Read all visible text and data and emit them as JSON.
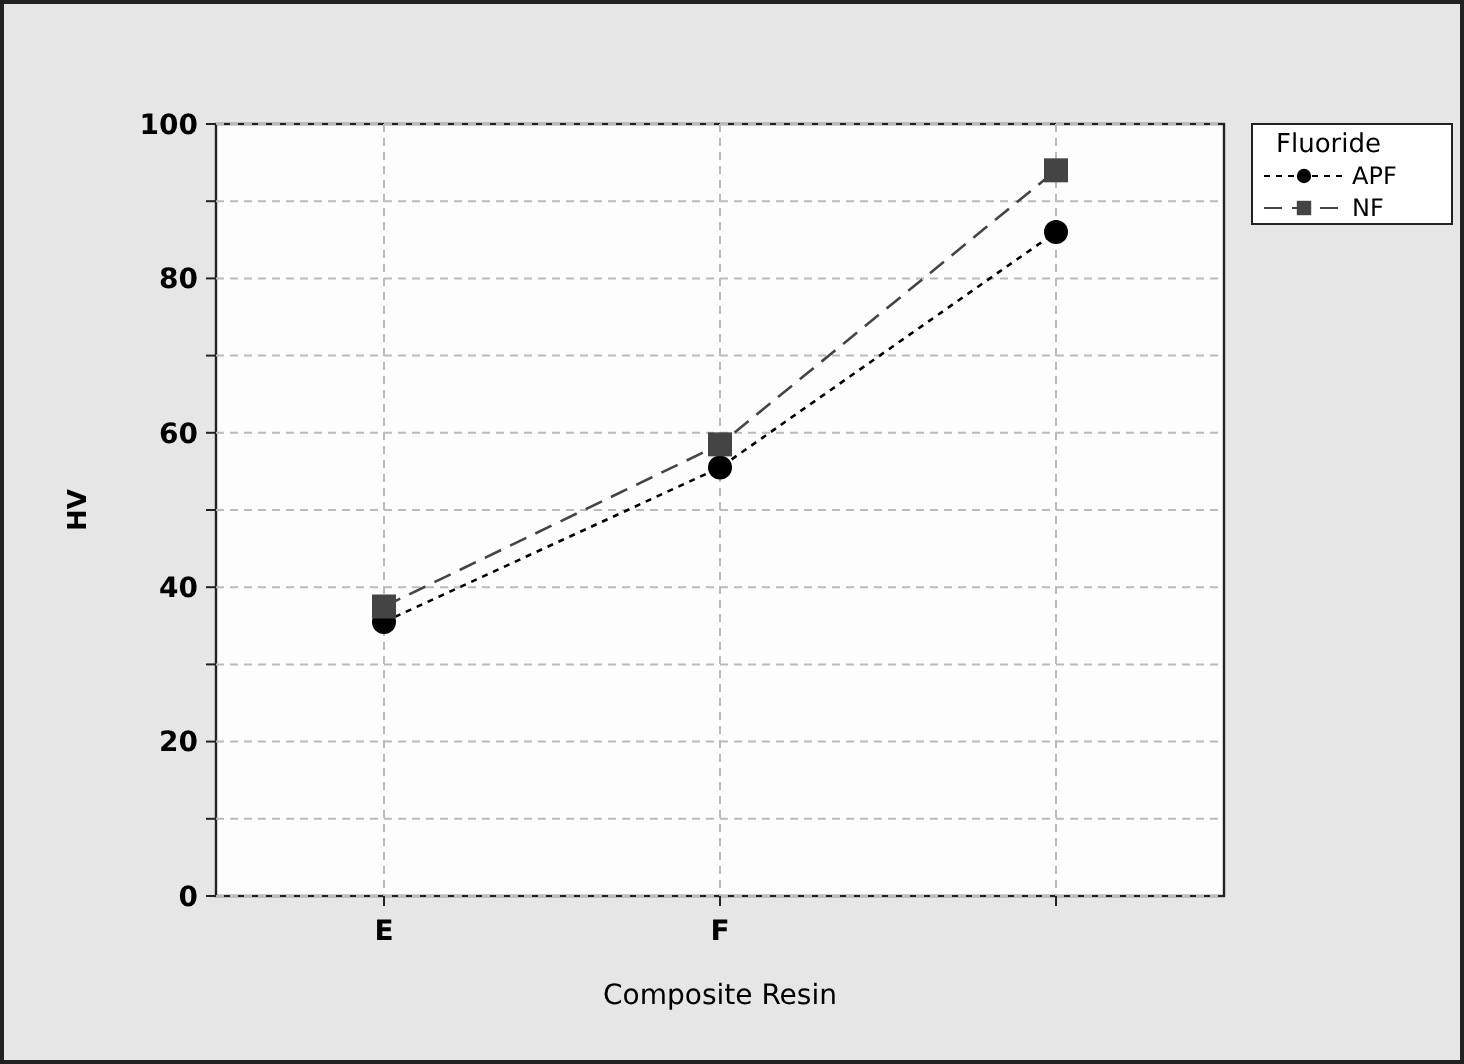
{
  "chart_data": {
    "type": "line",
    "xlabel": "Composite Resin",
    "ylabel": "HV",
    "legend_title": "Fluoride",
    "categories": [
      "E",
      "F",
      null
    ],
    "series": [
      {
        "name": "APF",
        "color": "#000000",
        "values": [
          35.5,
          55.5,
          86
        ],
        "marker": "circle",
        "line_style": "dotted"
      },
      {
        "name": "NF",
        "color": "#444444",
        "values": [
          37.5,
          58.5,
          94
        ],
        "marker": "square",
        "line_style": "dashed"
      }
    ],
    "ylim": [
      0,
      100
    ],
    "yticks": [
      0,
      {
        "value": 10,
        "label": null
      },
      20,
      {
        "value": 30,
        "label": null
      },
      40,
      {
        "value": 50,
        "label": null
      },
      60,
      {
        "value": 70,
        "label": null
      },
      80,
      {
        "value": 90,
        "label": null
      },
      100
    ],
    "grid": true,
    "legend": "top right"
  }
}
